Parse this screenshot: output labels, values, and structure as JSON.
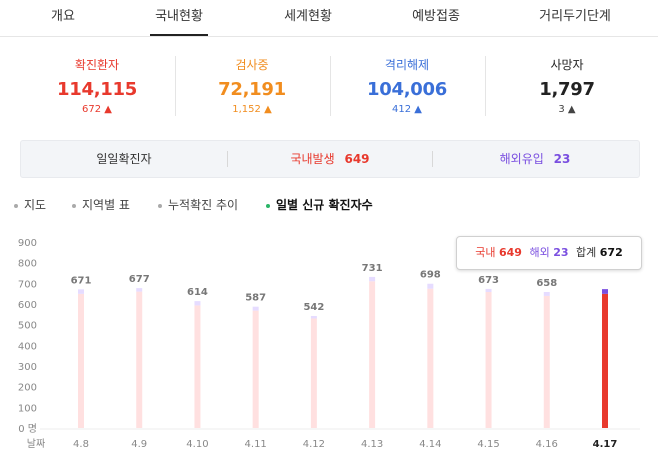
{
  "tabs": [
    {
      "label": "개요",
      "active": false
    },
    {
      "label": "국내현황",
      "active": true
    },
    {
      "label": "세계현황",
      "active": false
    },
    {
      "label": "예방접종",
      "active": false
    },
    {
      "label": "거리두기단계",
      "active": false
    }
  ],
  "stats": [
    {
      "label": "확진환자",
      "value": "114,115",
      "delta": "672",
      "color": "#e8392d"
    },
    {
      "label": "검사중",
      "value": "72,191",
      "delta": "1,152",
      "color": "#f18d1f"
    },
    {
      "label": "격리해제",
      "value": "104,006",
      "delta": "412",
      "color": "#3a6fd8"
    },
    {
      "label": "사망자",
      "value": "1,797",
      "delta": "3",
      "color": "#222222"
    }
  ],
  "daily": {
    "title": "일일확진자",
    "domestic_label": "국내발생",
    "domestic_value": "649",
    "overseas_label": "해외유입",
    "overseas_value": "23"
  },
  "menu": [
    {
      "label": "지도",
      "active": false
    },
    {
      "label": "지역별 표",
      "active": false
    },
    {
      "label": "누적확진 추이",
      "active": false
    },
    {
      "label": "일별 신규 확진자수",
      "active": true
    }
  ],
  "tooltip": {
    "domestic_label": "국내",
    "domestic_value": "649",
    "overseas_label": "해외",
    "overseas_value": "23",
    "total_label": "합계",
    "total_value": "672"
  },
  "chart_data": {
    "type": "bar",
    "categories": [
      "4.8",
      "4.9",
      "4.10",
      "4.11",
      "4.12",
      "4.13",
      "4.14",
      "4.15",
      "4.16",
      "4.17"
    ],
    "series": [
      {
        "name": "국내",
        "values": [
          649,
          660,
          593,
          568,
          530,
          710,
          674,
          658,
          639,
          649
        ]
      },
      {
        "name": "해외",
        "values": [
          22,
          17,
          21,
          19,
          12,
          21,
          24,
          15,
          19,
          23
        ]
      }
    ],
    "totals": [
      671,
      677,
      614,
      587,
      542,
      731,
      698,
      673,
      658,
      null
    ],
    "yticks": [
      0,
      100,
      200,
      300,
      400,
      500,
      600,
      700,
      800,
      900
    ],
    "zero_label": "0 명",
    "x_axis_label": "날짜",
    "ylim": [
      0,
      900
    ],
    "highlight_index": 9,
    "colors": {
      "domestic": "#ffe0e0",
      "overseas": "#e6dcff",
      "domestic_highlight": "#e8392d",
      "overseas_highlight": "#7a4fe0"
    }
  }
}
